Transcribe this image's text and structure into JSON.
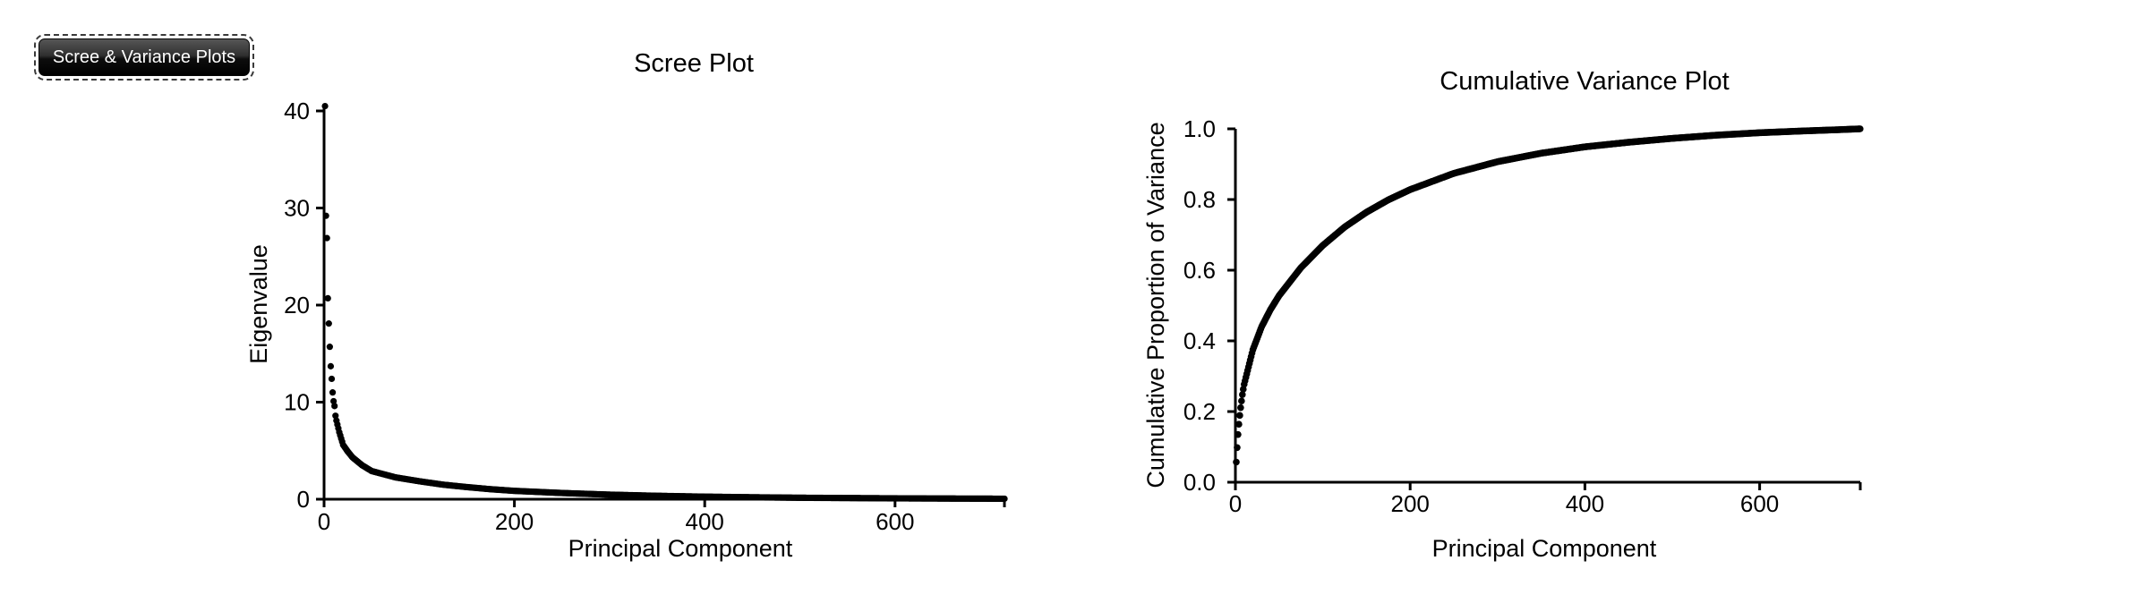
{
  "toolbar": {
    "plots_button_label": "Scree & Variance Plots"
  },
  "colors": {
    "point": "#000000",
    "axis": "#000000",
    "text": "#000000",
    "background": "#ffffff",
    "button_text": "#ffffff",
    "button_bg_top": "#565656",
    "button_bg_bottom": "#000000",
    "button_focus_ring": "#3a3a3a"
  },
  "chart_data": [
    {
      "type": "scatter",
      "title": "Scree Plot",
      "xlabel": "Principal Component",
      "ylabel": "Eigenvalue",
      "x_ticks": [
        0,
        200,
        400,
        600
      ],
      "x_tick_labels": [
        "0",
        "200",
        "400",
        "600"
      ],
      "y_ticks": [
        0,
        10,
        20,
        30,
        40
      ],
      "y_tick_labels": [
        "0",
        "10",
        "20",
        "30",
        "40"
      ],
      "xlim": [
        1,
        715
      ],
      "ylim": [
        0,
        40.5
      ],
      "grid": false,
      "legend": null,
      "point_color": "#000000",
      "series": [
        {
          "name": "eigenvalue",
          "n_points": 715,
          "leading_values": [
            40.5,
            29.2,
            26.9,
            20.7,
            18.1,
            15.7,
            13.7,
            12.4,
            11.0,
            10.1,
            9.6,
            8.6,
            8.1
          ],
          "tail_samples": {
            "x": [
              13,
              16,
              20,
              25,
              30,
              40,
              50,
              75,
              100,
              125,
              150,
              175,
              200,
              250,
              300,
              350,
              400,
              450,
              500,
              550,
              600,
              650,
              715
            ],
            "y": [
              8.1,
              6.9,
              5.6,
              4.9,
              4.3,
              3.5,
              2.9,
              2.25,
              1.85,
              1.5,
              1.25,
              1.03,
              0.86,
              0.64,
              0.47,
              0.35,
              0.26,
              0.2,
              0.15,
              0.12,
              0.09,
              0.07,
              0.05
            ]
          }
        }
      ]
    },
    {
      "type": "scatter",
      "title": "Cumulative Variance Plot",
      "xlabel": "Principal Component",
      "ylabel": "Cumulative Proportion of Variance",
      "x_ticks": [
        0,
        200,
        400,
        600
      ],
      "x_tick_labels": [
        "0",
        "200",
        "400",
        "600"
      ],
      "y_ticks": [
        0,
        0.2,
        0.4,
        0.6,
        0.8,
        1.0
      ],
      "y_tick_labels": [
        "0.0",
        "0.2",
        "0.4",
        "0.6",
        "0.8",
        "1.0"
      ],
      "xlim": [
        1,
        715
      ],
      "ylim": [
        0.057,
        1.0
      ],
      "grid": false,
      "legend": null,
      "point_color": "#000000",
      "series": [
        {
          "name": "cumulative_proportion",
          "n_points": 715,
          "leading_values": [
            0.057,
            0.098,
            0.135,
            0.164,
            0.189,
            0.211,
            0.23,
            0.248,
            0.263,
            0.277
          ],
          "tail_samples": {
            "x": [
              10,
              20,
              30,
              40,
              50,
              75,
              100,
              125,
              150,
              175,
              200,
              250,
              300,
              350,
              400,
              450,
              500,
              550,
              600,
              650,
              690,
              715
            ],
            "y": [
              0.277,
              0.375,
              0.44,
              0.488,
              0.528,
              0.607,
              0.67,
              0.722,
              0.764,
              0.799,
              0.828,
              0.874,
              0.907,
              0.931,
              0.949,
              0.962,
              0.973,
              0.982,
              0.989,
              0.994,
              0.9975,
              1.0
            ]
          }
        }
      ]
    }
  ]
}
